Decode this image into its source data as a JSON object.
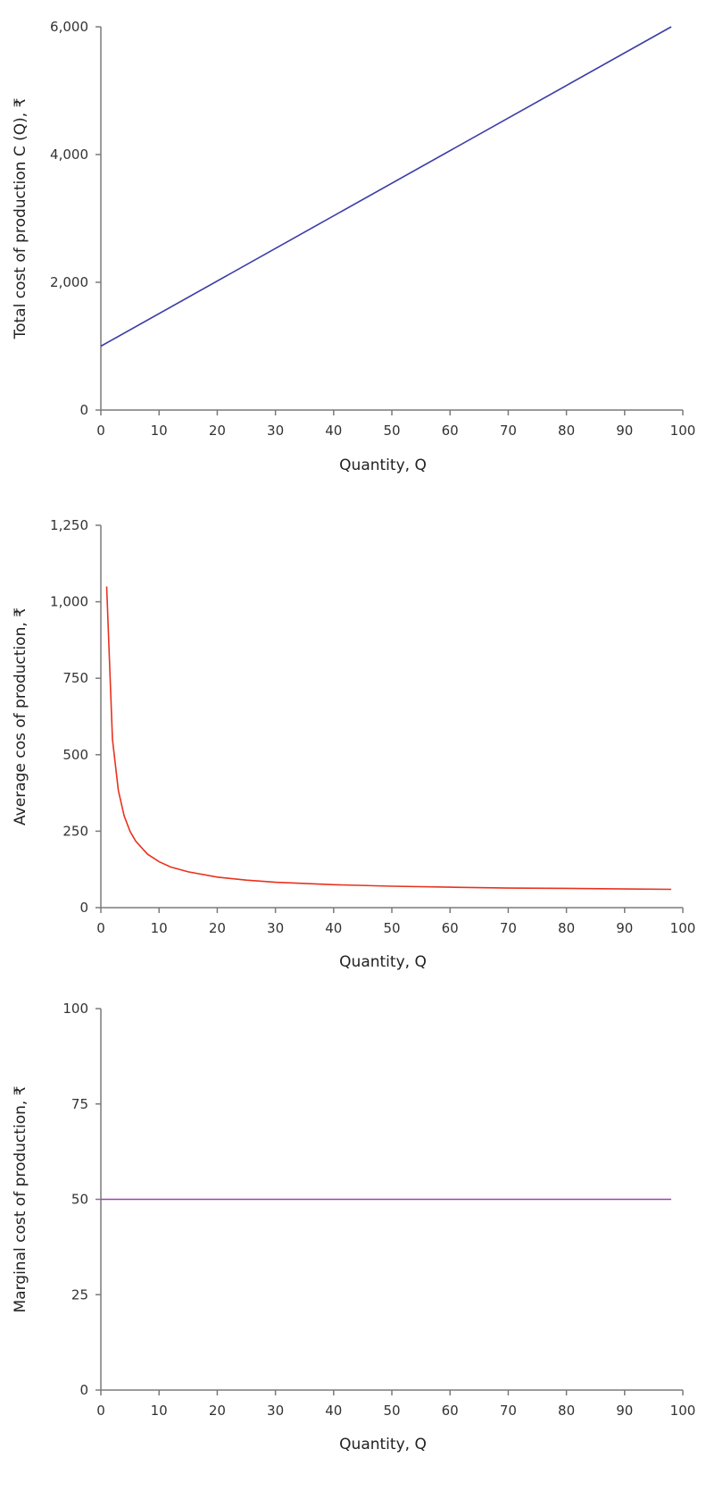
{
  "chart_data": [
    {
      "type": "line",
      "xlabel": "Quantity, Q",
      "ylabel": "Total cost of production C (Q), ₹",
      "xlim": [
        0,
        100
      ],
      "ylim": [
        0,
        6000
      ],
      "xticks": [
        "0",
        "10",
        "20",
        "30",
        "40",
        "50",
        "60",
        "70",
        "80",
        "90",
        "100"
      ],
      "yticks": [
        "0",
        "2,000",
        "4,000",
        "6,000"
      ],
      "ytick_values": [
        0,
        2000,
        4000,
        6000
      ],
      "grid": false,
      "series": [
        {
          "color": "#3c3ca8",
          "points": [
            [
              0,
              1000
            ],
            [
              98,
              6000
            ]
          ]
        }
      ]
    },
    {
      "type": "line",
      "xlabel": "Quantity, Q",
      "ylabel": "Average cos of production, ₹",
      "xlim": [
        0,
        100
      ],
      "ylim": [
        0,
        1250
      ],
      "xticks": [
        "0",
        "10",
        "20",
        "30",
        "40",
        "50",
        "60",
        "70",
        "80",
        "90",
        "100"
      ],
      "yticks": [
        "0",
        "250",
        "500",
        "750",
        "1,000",
        "1,250"
      ],
      "ytick_values": [
        0,
        250,
        500,
        750,
        1000,
        1250
      ],
      "grid": false,
      "series": [
        {
          "color": "#e8321e",
          "points": [
            [
              1,
              1050
            ],
            [
              2,
              550
            ],
            [
              3,
              383
            ],
            [
              4,
              300
            ],
            [
              5,
              250
            ],
            [
              6,
              217
            ],
            [
              8,
              175
            ],
            [
              10,
              150
            ],
            [
              12,
              133
            ],
            [
              15,
              117
            ],
            [
              20,
              100
            ],
            [
              25,
              90
            ],
            [
              30,
              83
            ],
            [
              40,
              75
            ],
            [
              50,
              70
            ],
            [
              60,
              67
            ],
            [
              70,
              64
            ],
            [
              80,
              63
            ],
            [
              90,
              61
            ],
            [
              98,
              60
            ]
          ]
        }
      ]
    },
    {
      "type": "line",
      "xlabel": "Quantity, Q",
      "ylabel": "Marginal cost of production, ₹",
      "xlim": [
        0,
        100
      ],
      "ylim": [
        0,
        100
      ],
      "xticks": [
        "0",
        "10",
        "20",
        "30",
        "40",
        "50",
        "60",
        "70",
        "80",
        "90",
        "100"
      ],
      "yticks": [
        "0",
        "25",
        "50",
        "75",
        "100"
      ],
      "ytick_values": [
        0,
        25,
        50,
        75,
        100
      ],
      "grid": false,
      "series": [
        {
          "color": "#a040b4",
          "points": [
            [
              0,
              50
            ],
            [
              98,
              50
            ]
          ]
        }
      ]
    }
  ]
}
